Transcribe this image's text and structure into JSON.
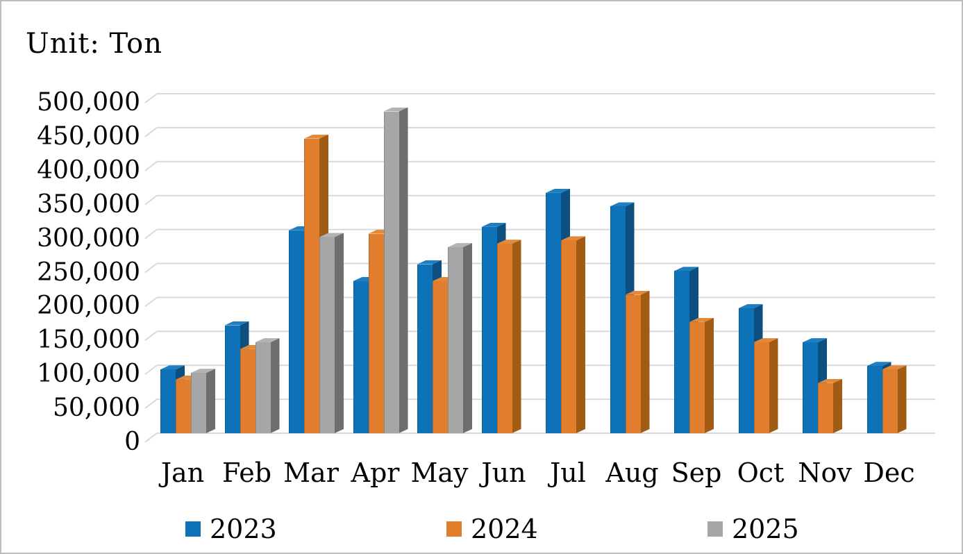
{
  "title": "Unit: Ton",
  "chart_data": {
    "type": "bar",
    "effect": "3d-clustered-column",
    "title": "Unit: Ton",
    "xlabel": "",
    "ylabel": "Ton",
    "ylim": [
      0,
      500000
    ],
    "ytick_step": 50000,
    "ytick_labels": [
      "0",
      "50,000",
      "100,000",
      "150,000",
      "200,000",
      "250,000",
      "300,000",
      "350,000",
      "400,000",
      "450,000",
      "500,000"
    ],
    "grid": true,
    "gridline_color": "#d9d9d9",
    "legend_position": "bottom",
    "categories": [
      "Jan",
      "Feb",
      "Mar",
      "Apr",
      "May",
      "Jun",
      "Jul",
      "Aug",
      "Sep",
      "Oct",
      "Nov",
      "Dec"
    ],
    "series": [
      {
        "name": "2023",
        "color": "#0e72b8",
        "side_color": "#0c4f80",
        "top_color": "#1f7dc0",
        "values": [
          100000,
          165000,
          305000,
          230000,
          255000,
          310000,
          360000,
          340000,
          245000,
          190000,
          140000,
          105000
        ]
      },
      {
        "name": "2024",
        "color": "#e07e2e",
        "side_color": "#a15c13",
        "top_color": "#e28a3a",
        "values": [
          85000,
          130000,
          440000,
          300000,
          230000,
          285000,
          290000,
          210000,
          170000,
          140000,
          80000,
          100000
        ]
      },
      {
        "name": "2025",
        "color": "#a6a6a6",
        "side_color": "#6e6e6e",
        "top_color": "#b3b3b3",
        "values": [
          95000,
          140000,
          295000,
          480000,
          280000,
          null,
          null,
          null,
          null,
          null,
          null,
          null
        ]
      }
    ]
  }
}
